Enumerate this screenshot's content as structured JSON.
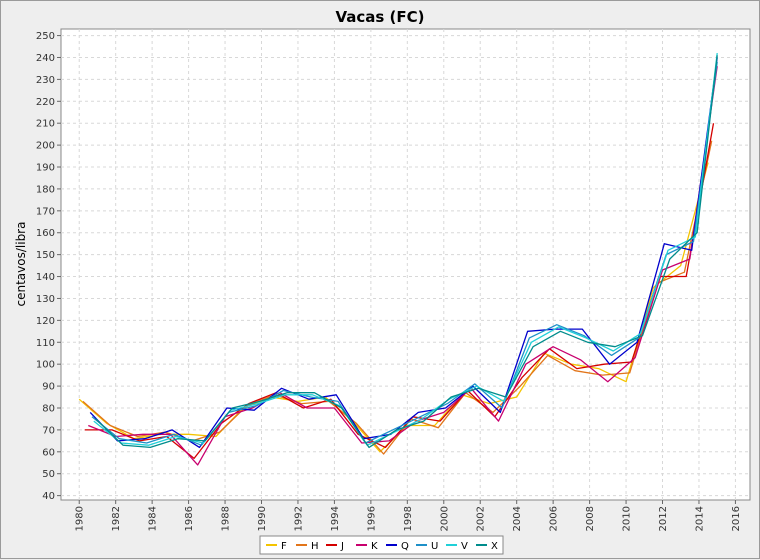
{
  "chart_data": {
    "type": "line",
    "title": "Vacas (FC)",
    "xlabel": "",
    "ylabel": "centavos/libra",
    "xlim": [
      1979,
      2016.8
    ],
    "ylim": [
      38,
      253
    ],
    "x_ticks": [
      "1980",
      "1982",
      "1984",
      "1986",
      "1988",
      "1990",
      "1992",
      "1994",
      "1996",
      "1998",
      "2000",
      "2002",
      "2004",
      "2006",
      "2008",
      "2010",
      "2012",
      "2014",
      "2016"
    ],
    "y_ticks": [
      "40",
      "50",
      "60",
      "70",
      "80",
      "90",
      "100",
      "110",
      "120",
      "130",
      "140",
      "150",
      "160",
      "170",
      "180",
      "190",
      "200",
      "210",
      "220",
      "230",
      "240",
      "250"
    ],
    "grid": true,
    "legend_position": "bottom",
    "series_colors": {
      "F": "#f4c400",
      "H": "#e2751a",
      "J": "#d40000",
      "K": "#c8006e",
      "Q": "#0000cc",
      "U": "#1e90c8",
      "V": "#20d0d8",
      "X": "#008c8c"
    },
    "legend": [
      "F",
      "H",
      "J",
      "K",
      "Q",
      "U",
      "V",
      "X"
    ],
    "series": [
      {
        "name": "F",
        "x": [
          1980.0,
          1981.5,
          1983.0,
          1984.5,
          1986.0,
          1987.5,
          1989.0,
          1990.5,
          1992.0,
          1993.5,
          1995.0,
          1996.5,
          1998.0,
          1999.5,
          2001.0,
          2002.5,
          2004.0,
          2005.5,
          2007.0,
          2008.5,
          2010.0,
          2011.5,
          2013.0,
          2014.5
        ],
        "values": [
          84,
          73,
          66,
          68,
          68,
          67,
          80,
          85,
          83,
          85,
          74,
          60,
          72,
          72,
          86,
          82,
          85,
          105,
          100,
          98,
          92,
          135,
          145,
          192
        ]
      },
      {
        "name": "H",
        "x": [
          1980.2,
          1981.7,
          1983.2,
          1984.7,
          1986.2,
          1987.7,
          1989.2,
          1990.7,
          1992.2,
          1993.7,
          1995.2,
          1996.7,
          1998.2,
          1999.7,
          2001.2,
          2002.7,
          2004.2,
          2005.7,
          2007.2,
          2008.7,
          2010.2,
          2011.7,
          2013.2,
          2014.7
        ],
        "values": [
          83,
          72,
          67,
          69,
          65,
          69,
          81,
          86,
          82,
          83,
          73,
          59,
          75,
          71,
          87,
          78,
          90,
          104,
          97,
          95,
          96,
          137,
          142,
          202
        ]
      },
      {
        "name": "J",
        "x": [
          1980.3,
          1981.8,
          1983.3,
          1984.8,
          1986.3,
          1987.8,
          1989.3,
          1990.8,
          1992.3,
          1993.8,
          1995.3,
          1996.8,
          1998.3,
          1999.8,
          2001.3,
          2002.8,
          2004.3,
          2005.8,
          2007.3,
          2008.8,
          2010.3,
          2011.8,
          2013.3,
          2014.8
        ],
        "values": [
          70,
          70,
          65,
          67,
          57,
          73,
          82,
          87,
          80,
          84,
          68,
          62,
          76,
          74,
          88,
          76,
          94,
          107,
          98,
          100,
          101,
          140,
          140,
          210
        ]
      },
      {
        "name": "K",
        "x": [
          1980.5,
          1982.0,
          1983.5,
          1985.0,
          1986.5,
          1988.0,
          1989.5,
          1991.0,
          1992.5,
          1994.0,
          1995.5,
          1997.0,
          1998.5,
          2000.0,
          2001.5,
          2003.0,
          2004.5,
          2006.0,
          2007.5,
          2009.0,
          2010.5,
          2012.0,
          2013.5,
          2015.0
        ],
        "values": [
          72,
          67,
          68,
          68,
          54,
          76,
          80,
          87,
          80,
          80,
          64,
          65,
          74,
          78,
          89,
          74,
          100,
          108,
          102,
          92,
          103,
          143,
          148,
          236
        ]
      },
      {
        "name": "Q",
        "x": [
          1980.6,
          1982.1,
          1983.6,
          1985.1,
          1986.6,
          1988.1,
          1989.6,
          1991.1,
          1992.6,
          1994.1,
          1995.6,
          1997.1,
          1998.6,
          2000.1,
          2001.6,
          2003.1,
          2004.6,
          2006.1,
          2007.6,
          2009.1,
          2010.6,
          2012.1,
          2013.6,
          2015.0
        ],
        "values": [
          78,
          65,
          66,
          70,
          62,
          80,
          79,
          89,
          84,
          86,
          66,
          68,
          78,
          80,
          90,
          78,
          115,
          116,
          116,
          100,
          110,
          155,
          152,
          240
        ]
      },
      {
        "name": "U",
        "x": [
          1980.7,
          1982.2,
          1983.7,
          1985.2,
          1986.7,
          1988.2,
          1989.7,
          1991.2,
          1992.7,
          1994.2,
          1995.7,
          1997.2,
          1998.7,
          2000.2,
          2001.7,
          2003.2,
          2004.7,
          2006.2,
          2007.7,
          2009.2,
          2010.7,
          2012.2,
          2013.7,
          2015.0
        ],
        "values": [
          76,
          66,
          64,
          68,
          63,
          78,
          81,
          88,
          85,
          83,
          64,
          70,
          76,
          82,
          91,
          80,
          112,
          118,
          113,
          104,
          112,
          150,
          156,
          238
        ]
      },
      {
        "name": "V",
        "x": [
          1980.8,
          1982.3,
          1983.8,
          1985.3,
          1986.8,
          1988.3,
          1989.8,
          1991.3,
          1992.8,
          1994.3,
          1995.8,
          1997.3,
          1998.8,
          2000.3,
          2001.8,
          2003.3,
          2004.8,
          2006.3,
          2007.8,
          2009.3,
          2010.8,
          2012.3,
          2013.8,
          2015.0
        ],
        "values": [
          74,
          64,
          63,
          67,
          64,
          79,
          82,
          86,
          86,
          81,
          63,
          69,
          75,
          84,
          90,
          83,
          110,
          117,
          112,
          106,
          114,
          152,
          158,
          242
        ]
      },
      {
        "name": "X",
        "x": [
          1980.9,
          1982.4,
          1983.9,
          1985.4,
          1986.9,
          1988.4,
          1989.9,
          1991.4,
          1992.9,
          1994.4,
          1995.9,
          1997.4,
          1998.9,
          2000.4,
          2001.9,
          2003.4,
          2004.9,
          2006.4,
          2007.9,
          2009.4,
          2010.9,
          2012.4,
          2013.9,
          2015.0
        ],
        "values": [
          75,
          63,
          62,
          66,
          65,
          80,
          83,
          87,
          87,
          80,
          62,
          70,
          74,
          85,
          89,
          85,
          108,
          115,
          110,
          108,
          113,
          148,
          160,
          241
        ]
      }
    ]
  }
}
